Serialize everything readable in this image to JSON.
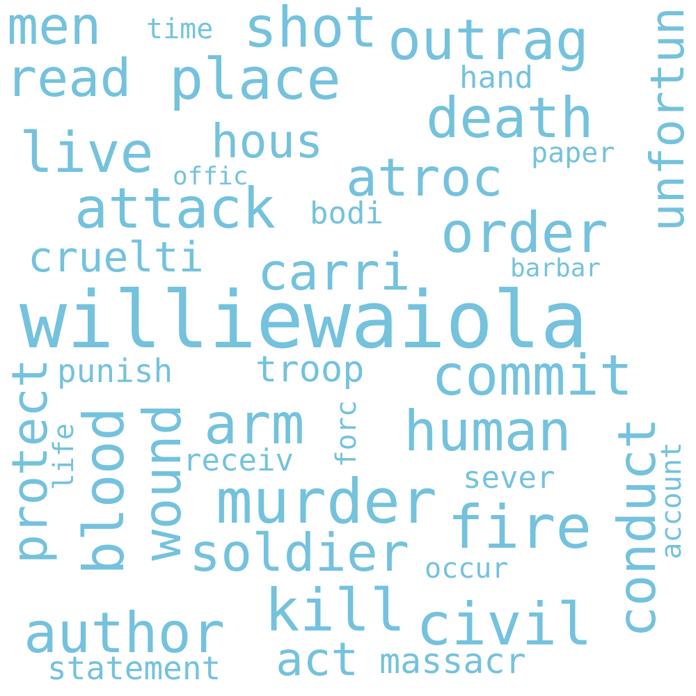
{
  "cloud": {
    "color": "#74c2dd",
    "words": {
      "williewaiola": "williewaiola",
      "unfortun": "unfortun",
      "murder": "murder",
      "outrag": "outrag",
      "place": "place",
      "commit": "commit",
      "human": "human",
      "fire": "fire",
      "conduct": "conduct",
      "death": "death",
      "attack": "attack",
      "protect": "protect",
      "soldier": "soldier",
      "kill": "kill",
      "civil": "civil",
      "author": "author",
      "wound": "wound",
      "blood": "blood",
      "live": "live",
      "atroc": "atroc",
      "order": "order",
      "carri": "carri",
      "arm": "arm",
      "shot": "shot",
      "men": "men",
      "read": "read",
      "hous": "hous",
      "cruelti": "cruelti",
      "act": "act",
      "troop": "troop",
      "massacr": "massacr",
      "statement": "statement",
      "punish": "punish",
      "receiv": "receiv",
      "sever": "sever",
      "bodi": "bodi",
      "hand": "hand",
      "paper": "paper",
      "forc": "forc",
      "account": "account",
      "occur": "occur",
      "barbar": "barbar",
      "time": "time",
      "offic": "offic",
      "life": "life"
    }
  }
}
